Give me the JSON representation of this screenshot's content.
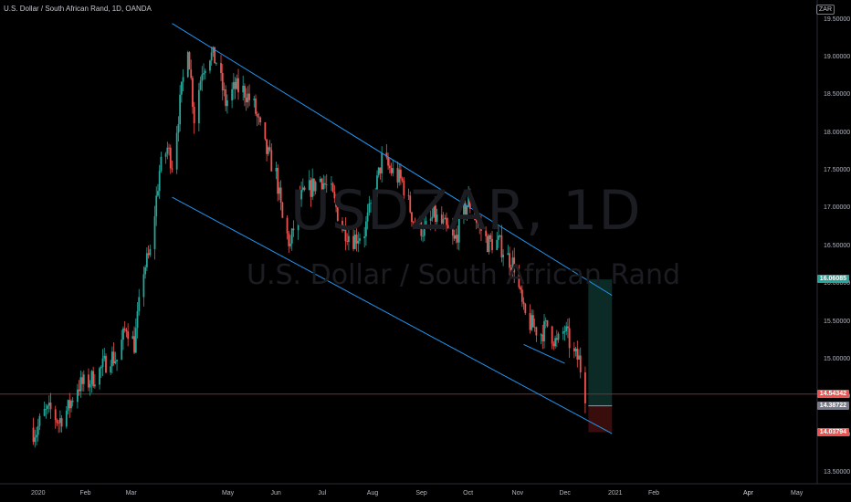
{
  "header": {
    "symbol_title": "U.S. Dollar / South African Rand, 1D, OANDA",
    "currency_tag": "ZAR"
  },
  "watermark": {
    "ticker": "USDZAR, 1D",
    "name": "U.S. Dollar / South African Rand"
  },
  "colors": {
    "background": "#000000",
    "up": "#26a69a",
    "down": "#ef5350",
    "channel": "#2196f3",
    "target_zone": "#0c2b27",
    "stop_zone": "#3a0d0d",
    "current_price_line": "#7a2f2a"
  },
  "chart_data": {
    "type": "candlestick",
    "x_ticks": [
      "2020",
      "Feb",
      "Mar",
      "Apr",
      "May",
      "Jun",
      "Jul",
      "Aug",
      "Sep",
      "Oct",
      "Nov",
      "Dec",
      "2021",
      "Feb",
      "Apr",
      "May"
    ],
    "y_ticks": [
      "13.50000",
      "14.00000",
      "14.50000",
      "15.00000",
      "15.50000",
      "16.00000",
      "16.50000",
      "17.00000",
      "17.50000",
      "18.00000",
      "18.50000",
      "19.00000",
      "19.50000"
    ],
    "ylim": [
      13.38,
      19.64
    ],
    "close_path": [
      [
        "2020-01-01",
        14.05
      ],
      [
        "2020-01-05",
        14.28
      ],
      [
        "2020-01-10",
        14.32
      ],
      [
        "2020-01-15",
        14.18
      ],
      [
        "2020-01-21",
        14.35
      ],
      [
        "2020-01-27",
        14.65
      ],
      [
        "2020-02-03",
        14.7
      ],
      [
        "2020-02-10",
        14.85
      ],
      [
        "2020-02-17",
        15.05
      ],
      [
        "2020-02-21",
        15.0
      ],
      [
        "2020-02-27",
        15.45
      ],
      [
        "2020-03-03",
        15.2
      ],
      [
        "2020-03-09",
        16.2
      ],
      [
        "2020-03-13",
        16.4
      ],
      [
        "2020-03-19",
        17.5
      ],
      [
        "2020-03-24",
        17.8
      ],
      [
        "2020-03-27",
        17.6
      ],
      [
        "2020-04-02",
        18.55
      ],
      [
        "2020-04-06",
        19.2
      ],
      [
        "2020-04-10",
        18.2
      ],
      [
        "2020-04-15",
        18.85
      ],
      [
        "2020-04-20",
        19.05
      ],
      [
        "2020-04-24",
        18.95
      ],
      [
        "2020-04-30",
        18.4
      ],
      [
        "2020-05-06",
        18.6
      ],
      [
        "2020-05-12",
        18.55
      ],
      [
        "2020-05-18",
        18.35
      ],
      [
        "2020-05-25",
        17.8
      ],
      [
        "2020-06-01",
        17.45
      ],
      [
        "2020-06-05",
        16.85
      ],
      [
        "2020-06-10",
        16.5
      ],
      [
        "2020-06-15",
        17.1
      ],
      [
        "2020-06-22",
        17.25
      ],
      [
        "2020-06-29",
        17.4
      ],
      [
        "2020-07-06",
        17.2
      ],
      [
        "2020-07-13",
        16.75
      ],
      [
        "2020-07-20",
        16.6
      ],
      [
        "2020-07-27",
        16.7
      ],
      [
        "2020-08-03",
        17.25
      ],
      [
        "2020-08-07",
        17.65
      ],
      [
        "2020-08-13",
        17.5
      ],
      [
        "2020-08-20",
        17.35
      ],
      [
        "2020-08-27",
        16.85
      ],
      [
        "2020-09-03",
        16.7
      ],
      [
        "2020-09-09",
        16.9
      ],
      [
        "2020-09-16",
        16.75
      ],
      [
        "2020-09-22",
        16.55
      ],
      [
        "2020-09-28",
        16.95
      ],
      [
        "2020-10-01",
        17.1
      ],
      [
        "2020-10-07",
        16.8
      ],
      [
        "2020-10-13",
        16.55
      ],
      [
        "2020-10-20",
        16.55
      ],
      [
        "2020-10-26",
        16.35
      ],
      [
        "2020-10-30",
        16.25
      ],
      [
        "2020-11-05",
        15.6
      ],
      [
        "2020-11-10",
        15.45
      ],
      [
        "2020-11-16",
        15.35
      ],
      [
        "2020-11-20",
        15.45
      ],
      [
        "2020-11-26",
        15.2
      ],
      [
        "2020-12-01",
        15.4
      ],
      [
        "2020-12-07",
        15.05
      ],
      [
        "2020-12-10",
        15.0
      ],
      [
        "2020-12-14",
        14.55
      ]
    ],
    "current_price": 14.54342,
    "channel_upper": [
      [
        "2020-03-27",
        19.45
      ],
      [
        "2020-12-31",
        15.85
      ]
    ],
    "channel_lower": [
      [
        "2020-03-27",
        17.15
      ],
      [
        "2020-12-31",
        14.02
      ]
    ],
    "inner_wedge": [
      [
        "2020-11-05",
        15.2
      ],
      [
        "2020-12-01",
        14.95
      ]
    ],
    "position": {
      "entry": 14.38722,
      "target": 16.06085,
      "stop": 14.03794,
      "start": "2020-12-16",
      "end": "2020-12-31"
    }
  },
  "price_badges": {
    "target": "16.06085",
    "current": "14.54342",
    "entry": "14.38722",
    "stop": "14.03794"
  }
}
